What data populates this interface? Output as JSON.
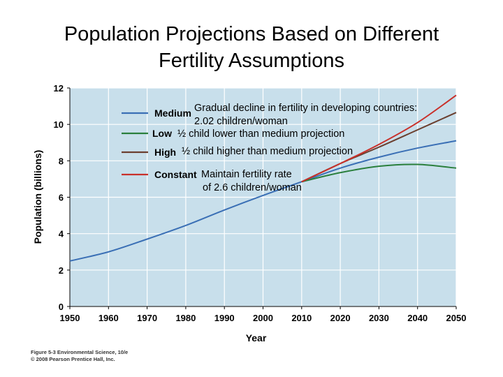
{
  "slide": {
    "title_line1": "Population Projections Based on Different",
    "title_line2": "Fertility Assumptions"
  },
  "annotations": {
    "medium": "Gradual decline in fertility in developing countries:",
    "medium_2": "2.02 children/woman",
    "low": "½ child lower than medium projection",
    "high": "½ child higher than medium projection",
    "constant": "Maintain fertility rate",
    "constant_2": "of 2.6 children/woman"
  },
  "credit": {
    "line1": "Figure 5-3  Environmental Science, 10/e",
    "line2": "© 2008 Pearson Prentice Hall, Inc."
  },
  "colors": {
    "plot_bg": "#c8dfeb",
    "grid": "#ffffff",
    "medium": "#3a6fb5",
    "low": "#2a7f3c",
    "high": "#6b3f2f",
    "constant": "#c9302a"
  },
  "chart_data": {
    "type": "line",
    "xlabel": "Year",
    "ylabel": "Population (billions)",
    "xlim": [
      1950,
      2050
    ],
    "ylim": [
      0,
      12
    ],
    "xticks": [
      1950,
      1960,
      1970,
      1980,
      1990,
      2000,
      2010,
      2020,
      2030,
      2040,
      2050
    ],
    "yticks": [
      0,
      2,
      4,
      6,
      8,
      10,
      12
    ],
    "grid": true,
    "legend_position": "top-left",
    "series": [
      {
        "name": "Medium",
        "color": "#3a6fb5",
        "x": [
          1950,
          1960,
          1970,
          1980,
          1990,
          2000,
          2010,
          2020,
          2030,
          2040,
          2050
        ],
        "y": [
          2.5,
          3.0,
          3.7,
          4.45,
          5.3,
          6.1,
          6.85,
          7.6,
          8.2,
          8.7,
          9.1
        ]
      },
      {
        "name": "Low",
        "color": "#2a7f3c",
        "x": [
          2010,
          2020,
          2030,
          2040,
          2050
        ],
        "y": [
          6.85,
          7.35,
          7.7,
          7.8,
          7.6
        ]
      },
      {
        "name": "High",
        "color": "#6b3f2f",
        "x": [
          2010,
          2020,
          2030,
          2040,
          2050
        ],
        "y": [
          6.85,
          7.85,
          8.75,
          9.7,
          10.65
        ]
      },
      {
        "name": "Constant",
        "color": "#c9302a",
        "x": [
          2010,
          2020,
          2030,
          2040,
          2050
        ],
        "y": [
          6.85,
          7.85,
          8.9,
          10.1,
          11.6
        ]
      }
    ]
  }
}
